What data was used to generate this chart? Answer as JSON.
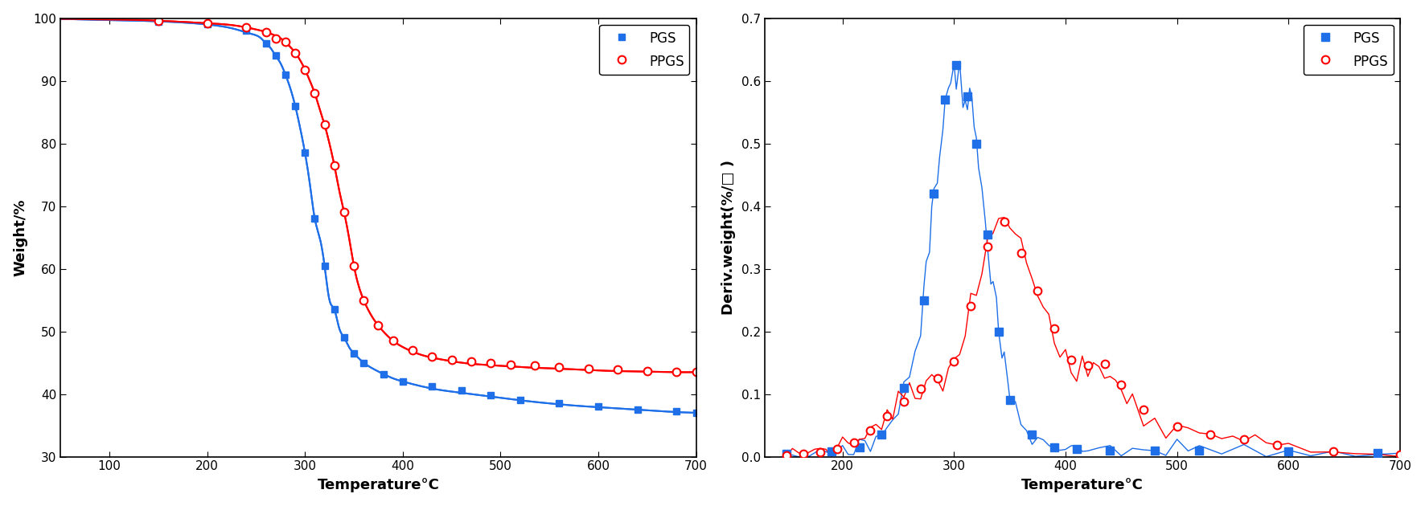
{
  "tg_pgs_temp": [
    50,
    100,
    150,
    200,
    230,
    245,
    255,
    260,
    265,
    270,
    275,
    280,
    285,
    290,
    295,
    300,
    305,
    310,
    315,
    320,
    325,
    330,
    335,
    340,
    345,
    350,
    360,
    370,
    380,
    390,
    400,
    420,
    440,
    460,
    480,
    500,
    520,
    550,
    580,
    610,
    640,
    670,
    700
  ],
  "tg_pgs_weight": [
    99.9,
    99.7,
    99.5,
    99.0,
    98.2,
    97.5,
    96.8,
    96.0,
    95.2,
    94.0,
    92.8,
    91.0,
    88.8,
    86.0,
    82.5,
    78.5,
    73.5,
    68.0,
    65.0,
    60.5,
    55.0,
    53.5,
    50.5,
    49.0,
    47.5,
    46.5,
    45.0,
    44.0,
    43.2,
    42.5,
    42.0,
    41.2,
    40.6,
    40.2,
    39.8,
    39.4,
    39.0,
    38.5,
    38.1,
    37.8,
    37.5,
    37.2,
    37.0
  ],
  "tg_ppgs_temp": [
    50,
    100,
    150,
    200,
    230,
    250,
    260,
    270,
    275,
    280,
    285,
    290,
    295,
    300,
    305,
    310,
    315,
    320,
    325,
    330,
    335,
    340,
    345,
    350,
    360,
    370,
    380,
    390,
    400,
    420,
    440,
    460,
    480,
    500,
    520,
    550,
    580,
    610,
    640,
    670,
    700
  ],
  "tg_ppgs_weight": [
    99.9,
    99.8,
    99.6,
    99.2,
    98.8,
    98.2,
    97.8,
    97.2,
    96.8,
    96.2,
    95.4,
    94.5,
    93.3,
    91.8,
    90.0,
    88.0,
    85.5,
    83.0,
    80.0,
    76.5,
    72.5,
    69.0,
    65.0,
    60.5,
    55.0,
    52.0,
    50.0,
    48.5,
    47.5,
    46.2,
    45.5,
    45.0,
    44.7,
    44.5,
    44.3,
    44.1,
    43.9,
    43.7,
    43.6,
    43.5,
    43.5
  ],
  "tg_pgs_marker_temp": [
    150,
    200,
    240,
    260,
    270,
    280,
    290,
    300,
    310,
    320,
    330,
    340,
    350,
    360,
    380,
    400,
    430,
    460,
    490,
    520,
    560,
    600,
    640,
    680,
    700
  ],
  "tg_pgs_marker_weight": [
    99.5,
    99.0,
    98.0,
    96.0,
    94.0,
    91.0,
    86.0,
    78.5,
    68.0,
    60.5,
    53.5,
    49.0,
    46.5,
    45.0,
    43.2,
    42.0,
    41.2,
    40.6,
    39.8,
    39.0,
    38.5,
    38.0,
    37.5,
    37.2,
    37.0
  ],
  "tg_ppgs_marker_temp": [
    150,
    200,
    240,
    260,
    270,
    280,
    290,
    300,
    310,
    320,
    330,
    340,
    350,
    360,
    375,
    390,
    410,
    430,
    450,
    470,
    490,
    510,
    535,
    560,
    590,
    620,
    650,
    680,
    700
  ],
  "tg_ppgs_marker_weight": [
    99.6,
    99.2,
    98.5,
    97.8,
    96.8,
    96.2,
    94.5,
    91.8,
    88.0,
    83.0,
    76.5,
    69.0,
    60.5,
    55.0,
    51.0,
    48.5,
    47.0,
    46.0,
    45.5,
    45.2,
    44.9,
    44.7,
    44.5,
    44.3,
    44.1,
    43.9,
    43.7,
    43.5,
    43.5
  ],
  "dtg_pgs_temp": [
    150,
    160,
    170,
    180,
    190,
    200,
    205,
    210,
    215,
    220,
    225,
    230,
    235,
    240,
    245,
    250,
    255,
    260,
    265,
    270,
    273,
    275,
    278,
    280,
    282,
    285,
    287,
    290,
    292,
    295,
    297,
    300,
    302,
    305,
    308,
    310,
    312,
    314,
    316,
    318,
    320,
    322,
    325,
    328,
    330,
    333,
    335,
    338,
    340,
    343,
    345,
    348,
    350,
    355,
    360,
    365,
    370,
    375,
    380,
    385,
    390,
    395,
    400,
    405,
    410,
    415,
    420,
    430,
    440,
    450,
    460,
    470,
    480,
    490,
    500,
    510,
    520,
    540,
    560,
    580,
    600,
    620,
    640,
    660,
    680,
    700
  ],
  "dtg_pgs_deriv": [
    0.005,
    0.006,
    0.007,
    0.008,
    0.009,
    0.01,
    0.011,
    0.013,
    0.015,
    0.018,
    0.022,
    0.028,
    0.035,
    0.045,
    0.06,
    0.08,
    0.11,
    0.14,
    0.175,
    0.21,
    0.25,
    0.3,
    0.33,
    0.375,
    0.42,
    0.465,
    0.5,
    0.54,
    0.57,
    0.59,
    0.6,
    0.61,
    0.625,
    0.615,
    0.6,
    0.59,
    0.575,
    0.56,
    0.545,
    0.525,
    0.5,
    0.465,
    0.43,
    0.39,
    0.355,
    0.305,
    0.27,
    0.225,
    0.2,
    0.165,
    0.14,
    0.115,
    0.09,
    0.07,
    0.055,
    0.045,
    0.035,
    0.028,
    0.022,
    0.018,
    0.015,
    0.014,
    0.013,
    0.013,
    0.012,
    0.012,
    0.012,
    0.01,
    0.01,
    0.01,
    0.01,
    0.01,
    0.01,
    0.01,
    0.01,
    0.01,
    0.01,
    0.01,
    0.01,
    0.008,
    0.008,
    0.008,
    0.008,
    0.007,
    0.006,
    0.005
  ],
  "dtg_ppgs_temp": [
    150,
    155,
    160,
    165,
    170,
    175,
    180,
    185,
    190,
    195,
    200,
    205,
    210,
    215,
    220,
    225,
    230,
    235,
    240,
    245,
    250,
    255,
    260,
    265,
    270,
    275,
    280,
    285,
    290,
    295,
    300,
    305,
    310,
    315,
    320,
    325,
    330,
    335,
    340,
    345,
    350,
    355,
    360,
    365,
    370,
    375,
    380,
    385,
    390,
    395,
    400,
    405,
    410,
    415,
    420,
    425,
    430,
    435,
    440,
    445,
    450,
    455,
    460,
    470,
    480,
    490,
    500,
    510,
    520,
    530,
    540,
    550,
    560,
    570,
    580,
    590,
    600,
    620,
    640,
    660,
    680,
    700
  ],
  "dtg_ppgs_deriv": [
    0.002,
    0.003,
    0.003,
    0.004,
    0.005,
    0.006,
    0.007,
    0.008,
    0.01,
    0.012,
    0.015,
    0.018,
    0.022,
    0.028,
    0.035,
    0.042,
    0.05,
    0.058,
    0.065,
    0.072,
    0.08,
    0.088,
    0.095,
    0.102,
    0.108,
    0.112,
    0.118,
    0.125,
    0.132,
    0.14,
    0.152,
    0.17,
    0.2,
    0.24,
    0.27,
    0.3,
    0.335,
    0.355,
    0.375,
    0.375,
    0.36,
    0.345,
    0.325,
    0.305,
    0.285,
    0.265,
    0.245,
    0.225,
    0.205,
    0.185,
    0.165,
    0.155,
    0.15,
    0.148,
    0.145,
    0.15,
    0.155,
    0.148,
    0.14,
    0.128,
    0.115,
    0.1,
    0.09,
    0.075,
    0.065,
    0.055,
    0.048,
    0.042,
    0.038,
    0.035,
    0.032,
    0.03,
    0.028,
    0.025,
    0.022,
    0.018,
    0.015,
    0.012,
    0.009,
    0.007,
    0.005,
    0.003
  ],
  "tg_xlabel": "Temperature°C",
  "tg_ylabel": "Weight/%",
  "dtg_xlabel": "Temperature°C",
  "dtg_ylabel": "Deriv.weight(%/□ )",
  "pgs_label": "PGS",
  "ppgs_label": "PPGS",
  "pgs_color": "#1E6FE8",
  "ppgs_color": "#FF0000",
  "tg_xlim": [
    50,
    700
  ],
  "tg_ylim": [
    30,
    100
  ],
  "tg_xticks": [
    100,
    200,
    300,
    400,
    500,
    600,
    700
  ],
  "tg_yticks": [
    30,
    40,
    50,
    60,
    70,
    80,
    90,
    100
  ],
  "dtg_xlim": [
    130,
    700
  ],
  "dtg_ylim": [
    0.0,
    0.7
  ],
  "dtg_xticks": [
    200,
    300,
    400,
    500,
    600,
    700
  ],
  "dtg_yticks": [
    0.0,
    0.1,
    0.2,
    0.3,
    0.4,
    0.5,
    0.6,
    0.7
  ]
}
